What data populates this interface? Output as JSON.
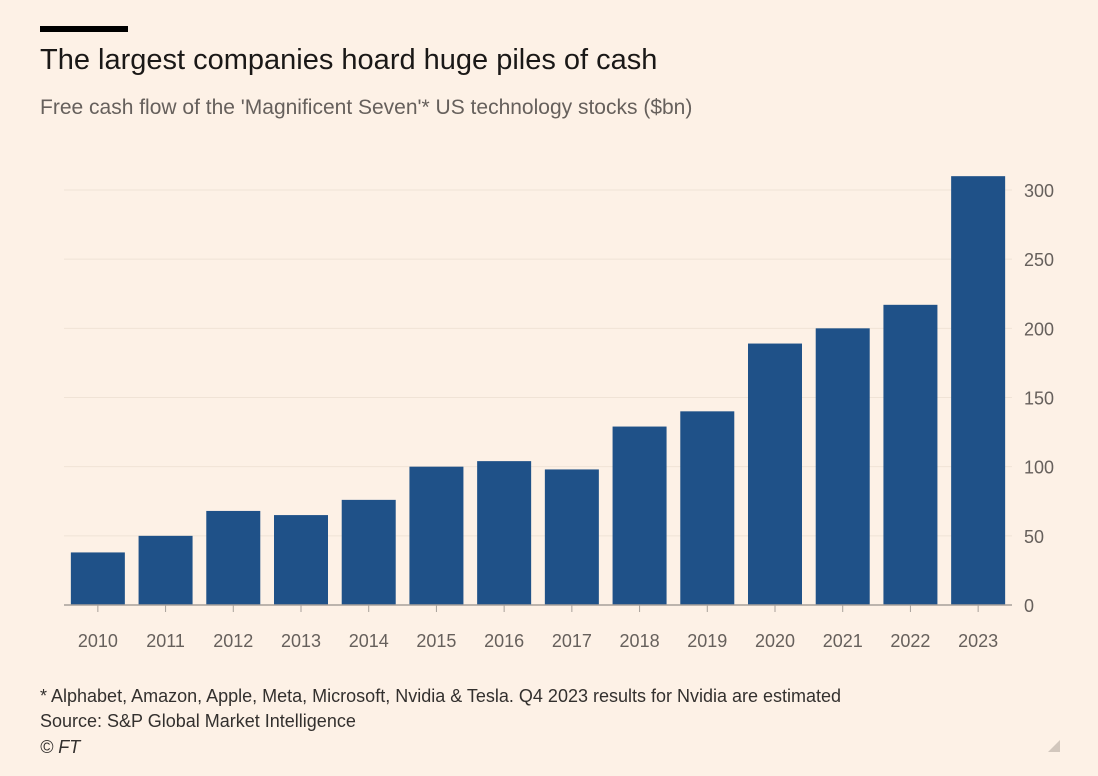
{
  "chart_data": {
    "type": "bar",
    "title": "The largest companies hoard huge piles of cash",
    "subtitle": "Free cash flow of the 'Magnificent Seven'* US technology stocks ($bn)",
    "xlabel": "",
    "ylabel": "",
    "categories": [
      "2010",
      "2011",
      "2012",
      "2013",
      "2014",
      "2015",
      "2016",
      "2017",
      "2018",
      "2019",
      "2020",
      "2021",
      "2022",
      "2023"
    ],
    "values": [
      38,
      50,
      68,
      65,
      76,
      100,
      104,
      98,
      129,
      140,
      189,
      200,
      217,
      310
    ],
    "ylim": [
      0,
      300
    ],
    "yticks": [
      "0",
      "50",
      "100",
      "150",
      "200",
      "250",
      "300"
    ],
    "grid": true,
    "bar_color": "#1f5188",
    "gridline_color": "#f0e3d6",
    "axis_color": "#a7a09a",
    "tick_label_color": "#66605c"
  },
  "notes": {
    "footnote": "* Alphabet, Amazon, Apple, Meta, Microsoft, Nvidia & Tesla. Q4 2023 results for Nvidia are estimated",
    "source": "Source: S&P Global Market Intelligence",
    "copyright": "© FT"
  },
  "colors": {
    "background": "#fdf1e6",
    "title": "#1a1817",
    "subtitle": "#66605c"
  },
  "icons": {
    "corner": "resize-corner-icon"
  }
}
